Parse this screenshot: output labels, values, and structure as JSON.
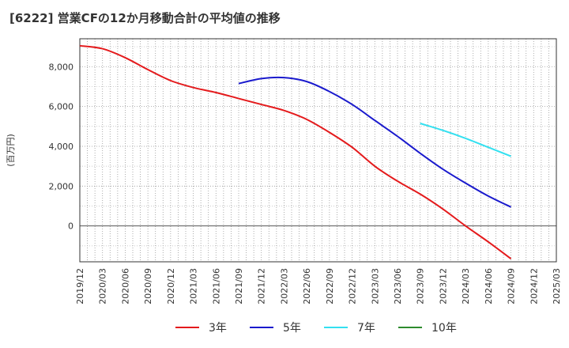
{
  "chart_data": {
    "type": "line",
    "title": "[6222]  営業CFの12か月移動合計の平均値の推移",
    "ylabel": "(百万円)",
    "xlabel": "",
    "ylim": [
      -1800,
      9400
    ],
    "y_ticks": [
      0,
      2000,
      4000,
      6000,
      8000
    ],
    "y_tick_labels": [
      "0",
      "2,000",
      "4,000",
      "6,000",
      "8,000"
    ],
    "x_tick_labels": [
      "2019/12",
      "2020/03",
      "2020/06",
      "2020/09",
      "2020/12",
      "2021/03",
      "2021/06",
      "2021/09",
      "2021/12",
      "2022/03",
      "2022/06",
      "2022/09",
      "2022/12",
      "2023/03",
      "2023/06",
      "2023/09",
      "2023/12",
      "2024/03",
      "2024/06",
      "2024/09",
      "2024/12",
      "2025/03"
    ],
    "grid": true,
    "legend_placement": "bottom",
    "series": [
      {
        "name": "3年",
        "color": "#e41a1c",
        "x": [
          "2019/12",
          "2020/03",
          "2020/06",
          "2020/09",
          "2020/12",
          "2021/03",
          "2021/06",
          "2021/09",
          "2021/12",
          "2022/03",
          "2022/06",
          "2022/09",
          "2022/12",
          "2023/03",
          "2023/06",
          "2023/09",
          "2023/12",
          "2024/03",
          "2024/06",
          "2024/09"
        ],
        "values": [
          9050,
          8900,
          8450,
          7850,
          7300,
          6950,
          6700,
          6400,
          6100,
          5800,
          5350,
          4700,
          3950,
          3000,
          2250,
          1600,
          850,
          0,
          -800,
          -1650
        ]
      },
      {
        "name": "5年",
        "color": "#1a1acd",
        "x": [
          "2021/09",
          "2021/12",
          "2022/03",
          "2022/06",
          "2022/09",
          "2022/12",
          "2023/03",
          "2023/06",
          "2023/09",
          "2023/12",
          "2024/03",
          "2024/06",
          "2024/09"
        ],
        "values": [
          7150,
          7400,
          7450,
          7250,
          6750,
          6100,
          5300,
          4500,
          3650,
          2850,
          2150,
          1500,
          950
        ]
      },
      {
        "name": "7年",
        "color": "#33e0f0",
        "x": [
          "2023/09",
          "2023/12",
          "2024/03",
          "2024/06",
          "2024/09"
        ],
        "values": [
          5150,
          4800,
          4400,
          3950,
          3500
        ]
      },
      {
        "name": "10年",
        "color": "#2e8b2e",
        "x": [],
        "values": []
      }
    ]
  }
}
